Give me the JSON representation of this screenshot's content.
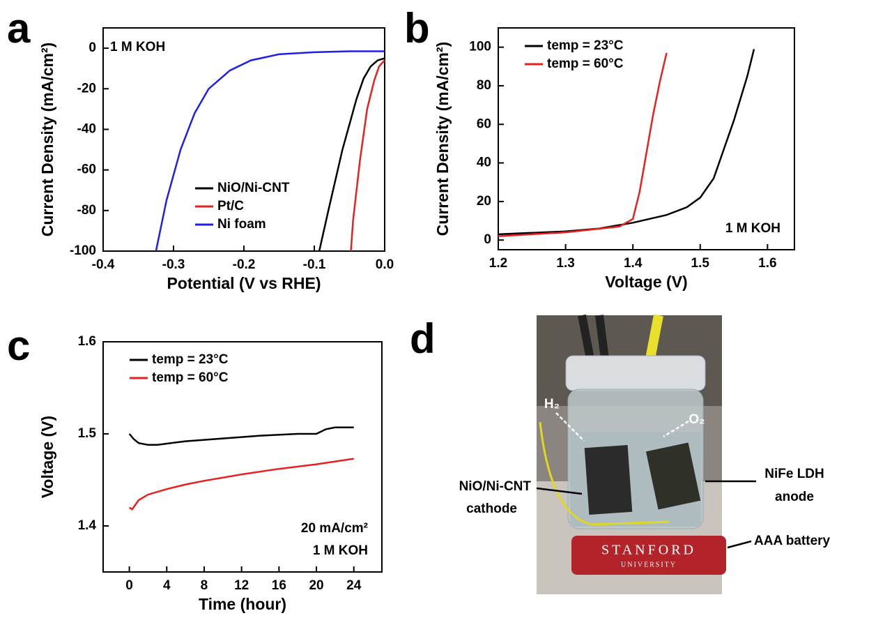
{
  "chart_data": [
    {
      "type": "line",
      "panel_label": "a",
      "xlabel": "Potential (V vs RHE)",
      "ylabel": "Current Density (mA/cm²)",
      "xlim": [
        -0.4,
        0.0
      ],
      "xticks": [
        -0.4,
        -0.3,
        -0.2,
        -0.1,
        {
          "value": 0,
          "label": "0.0"
        }
      ],
      "ylim": [
        -100,
        10
      ],
      "yticks": [
        -100,
        -80,
        -60,
        -40,
        -20,
        0
      ],
      "annotations": [
        "1 M KOH"
      ],
      "legend": "lower right",
      "series": [
        {
          "name": "NiO/Ni-CNT",
          "color": "#000000",
          "x": [
            -0.093,
            -0.08,
            -0.06,
            -0.04,
            -0.03,
            -0.02,
            -0.01,
            0.0
          ],
          "values": [
            -100,
            -80,
            -50,
            -25,
            -15,
            -9,
            -6,
            -5
          ]
        },
        {
          "name": "Pt/C",
          "color": "#e8201f",
          "x": [
            -0.048,
            -0.045,
            -0.035,
            -0.025,
            -0.015,
            -0.008,
            -0.003,
            0.0
          ],
          "values": [
            -100,
            -85,
            -55,
            -30,
            -16,
            -9,
            -7,
            -6
          ]
        },
        {
          "name": "Ni foam",
          "color": "#1f1fe8",
          "x": [
            -0.325,
            -0.31,
            -0.29,
            -0.27,
            -0.25,
            -0.22,
            -0.19,
            -0.15,
            -0.1,
            -0.05,
            0.0
          ],
          "values": [
            -100,
            -75,
            -50,
            -32,
            -20,
            -11,
            -6,
            -3,
            -2,
            -1.5,
            -1.5
          ]
        }
      ]
    },
    {
      "type": "line",
      "panel_label": "b",
      "xlabel": "Voltage (V)",
      "ylabel": "Current Density (mA/cm²)",
      "xlim": [
        1.2,
        1.64
      ],
      "xticks": [
        1.2,
        1.3,
        1.4,
        1.5,
        1.6
      ],
      "ylim": [
        -5,
        110
      ],
      "yticks": [
        0,
        20,
        40,
        60,
        80,
        100
      ],
      "annotations": [
        "1 M KOH"
      ],
      "legend": "upper left",
      "series": [
        {
          "name": "temp = 23°C",
          "color": "#000000",
          "x": [
            1.2,
            1.3,
            1.35,
            1.4,
            1.45,
            1.48,
            1.5,
            1.52,
            1.53,
            1.55,
            1.57,
            1.58
          ],
          "values": [
            3,
            4.5,
            6,
            9,
            13,
            17,
            22,
            32,
            42,
            62,
            85,
            99
          ]
        },
        {
          "name": "temp = 60°C",
          "color": "#e8201f",
          "x": [
            1.2,
            1.3,
            1.38,
            1.4,
            1.41,
            1.42,
            1.43,
            1.44,
            1.45
          ],
          "values": [
            2,
            4,
            7,
            11,
            25,
            45,
            65,
            82,
            97
          ]
        }
      ]
    },
    {
      "type": "line",
      "panel_label": "c",
      "xlabel": "Time (hour)",
      "ylabel": "Voltage (V)",
      "xlim": [
        -2.8,
        27
      ],
      "xticks": [
        0,
        4,
        8,
        12,
        16,
        20,
        24
      ],
      "ylim": [
        1.35,
        1.6
      ],
      "yticks": [
        1.4,
        1.5,
        1.6
      ],
      "annotations": [
        "20 mA/cm²",
        "1 M KOH"
      ],
      "legend": "upper left",
      "series": [
        {
          "name": "temp = 23°C",
          "color": "#000000",
          "x": [
            0,
            0.5,
            1,
            2,
            3,
            6,
            10,
            14,
            18,
            20,
            21,
            22,
            24
          ],
          "values": [
            1.5,
            1.494,
            1.49,
            1.488,
            1.488,
            1.492,
            1.495,
            1.498,
            1.5,
            1.5,
            1.505,
            1.507,
            1.507
          ]
        },
        {
          "name": "temp = 60°C",
          "color": "#e8201f",
          "x": [
            0,
            0.3,
            1,
            2,
            4,
            6,
            8,
            12,
            16,
            20,
            22,
            24
          ],
          "values": [
            1.42,
            1.418,
            1.428,
            1.434,
            1.44,
            1.445,
            1.449,
            1.456,
            1.462,
            1.467,
            1.47,
            1.473
          ]
        }
      ]
    }
  ],
  "photo": {
    "panel_label": "d",
    "annotations": [
      "H₂",
      "O₂",
      "NiO/Ni-CNT",
      "cathode",
      "NiFe LDH",
      "anode",
      "AAA battery"
    ],
    "battery_text": [
      "STANFORD",
      "UNIVERSITY"
    ]
  }
}
